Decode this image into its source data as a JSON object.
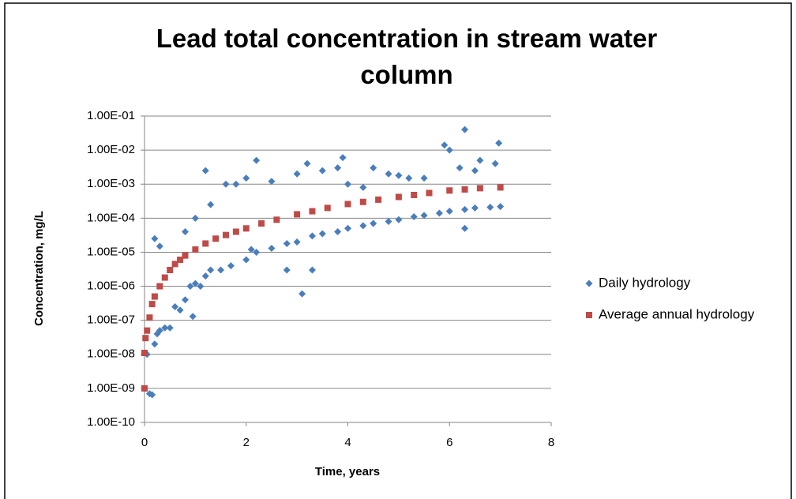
{
  "chart_data": {
    "type": "scatter",
    "title": "Lead total concentration in stream water column",
    "x_label": "Time, years",
    "y_label": "Concentration, mg/L",
    "xlim": [
      0,
      8
    ],
    "xticks": [
      0,
      2,
      4,
      6,
      8
    ],
    "ylim": [
      1e-10,
      0.1
    ],
    "yscale": "log",
    "yticks": [
      {
        "value": 1e-10,
        "label": "1.00E-10"
      },
      {
        "value": 1e-09,
        "label": "1.00E-09"
      },
      {
        "value": 1e-08,
        "label": "1.00E-08"
      },
      {
        "value": 1e-07,
        "label": "1.00E-07"
      },
      {
        "value": 1e-06,
        "label": "1.00E-06"
      },
      {
        "value": 1e-05,
        "label": "1.00E-05"
      },
      {
        "value": 0.0001,
        "label": "1.00E-04"
      },
      {
        "value": 0.001,
        "label": "1.00E-03"
      },
      {
        "value": 0.01,
        "label": "1.00E-02"
      },
      {
        "value": 0.1,
        "label": "1.00E-01"
      }
    ],
    "grid": true,
    "legend": "right",
    "series": [
      {
        "name": "Daily hydrology",
        "color": "#4a7ebb",
        "marker": "diamond",
        "x": [
          0.05,
          0.1,
          0.15,
          0.2,
          0.25,
          0.3,
          0.4,
          0.5,
          0.6,
          0.7,
          0.8,
          0.9,
          1.0,
          1.1,
          1.2,
          1.3,
          1.5,
          1.7,
          2.0,
          2.2,
          2.5,
          2.8,
          3.0,
          3.3,
          3.5,
          3.8,
          4.0,
          4.3,
          4.5,
          4.8,
          5.0,
          5.3,
          5.5,
          5.8,
          6.0,
          6.3,
          6.5,
          6.8,
          7.0,
          0.2,
          0.3,
          0.8,
          1.0,
          1.2,
          1.3,
          1.6,
          1.8,
          2.0,
          2.2,
          2.5,
          2.8,
          3.0,
          3.2,
          3.3,
          3.5,
          3.8,
          3.9,
          4.0,
          4.3,
          4.5,
          4.8,
          5.0,
          5.2,
          5.5,
          5.9,
          6.0,
          6.2,
          6.3,
          6.5,
          6.6,
          6.9,
          6.97,
          6.3,
          2.1,
          3.1,
          0.95
        ],
        "values": [
          1e-08,
          7e-10,
          6.5e-10,
          2e-08,
          4e-08,
          5e-08,
          6e-08,
          6e-08,
          2.5e-07,
          2e-07,
          4e-07,
          1e-06,
          1.2e-06,
          1e-06,
          2e-06,
          3e-06,
          3e-06,
          4e-06,
          6e-06,
          1e-05,
          1.3e-05,
          1.8e-05,
          2e-05,
          3e-05,
          3.5e-05,
          4e-05,
          5e-05,
          6e-05,
          7e-05,
          8e-05,
          9e-05,
          0.00011,
          0.00012,
          0.00014,
          0.00016,
          0.00018,
          0.0002,
          0.00021,
          0.00022,
          2.5e-05,
          1.5e-05,
          4e-05,
          0.0001,
          0.0025,
          0.00025,
          0.001,
          0.001,
          0.0015,
          0.005,
          0.0012,
          3e-06,
          0.002,
          0.004,
          3e-06,
          0.0025,
          0.003,
          0.006,
          0.001,
          0.0008,
          0.003,
          0.002,
          0.0018,
          0.0015,
          0.0015,
          0.014,
          0.01,
          0.003,
          0.04,
          0.0025,
          0.005,
          0.004,
          0.016,
          5e-05,
          1.2e-05,
          6e-07,
          1.3e-07
        ]
      },
      {
        "name": "Average annual hydrology",
        "color": "#be4b48",
        "marker": "square",
        "x": [
          0.0,
          0.0,
          0.02,
          0.05,
          0.1,
          0.15,
          0.2,
          0.3,
          0.4,
          0.5,
          0.6,
          0.7,
          0.8,
          1.0,
          1.2,
          1.4,
          1.6,
          1.8,
          2.0,
          2.3,
          2.6,
          3.0,
          3.3,
          3.6,
          4.0,
          4.3,
          4.6,
          5.0,
          5.3,
          5.6,
          6.0,
          6.3,
          6.6,
          7.0
        ],
        "values": [
          1e-09,
          1.1e-08,
          3e-08,
          5e-08,
          1.2e-07,
          3e-07,
          5e-07,
          1e-06,
          1.8e-06,
          3e-06,
          4.5e-06,
          6e-06,
          8e-06,
          1.2e-05,
          1.8e-05,
          2.5e-05,
          3.2e-05,
          4e-05,
          5e-05,
          7e-05,
          9e-05,
          0.00013,
          0.00016,
          0.0002,
          0.00026,
          0.0003,
          0.00035,
          0.00042,
          0.00048,
          0.00055,
          0.00065,
          0.0007,
          0.00076,
          0.0008
        ]
      }
    ]
  }
}
